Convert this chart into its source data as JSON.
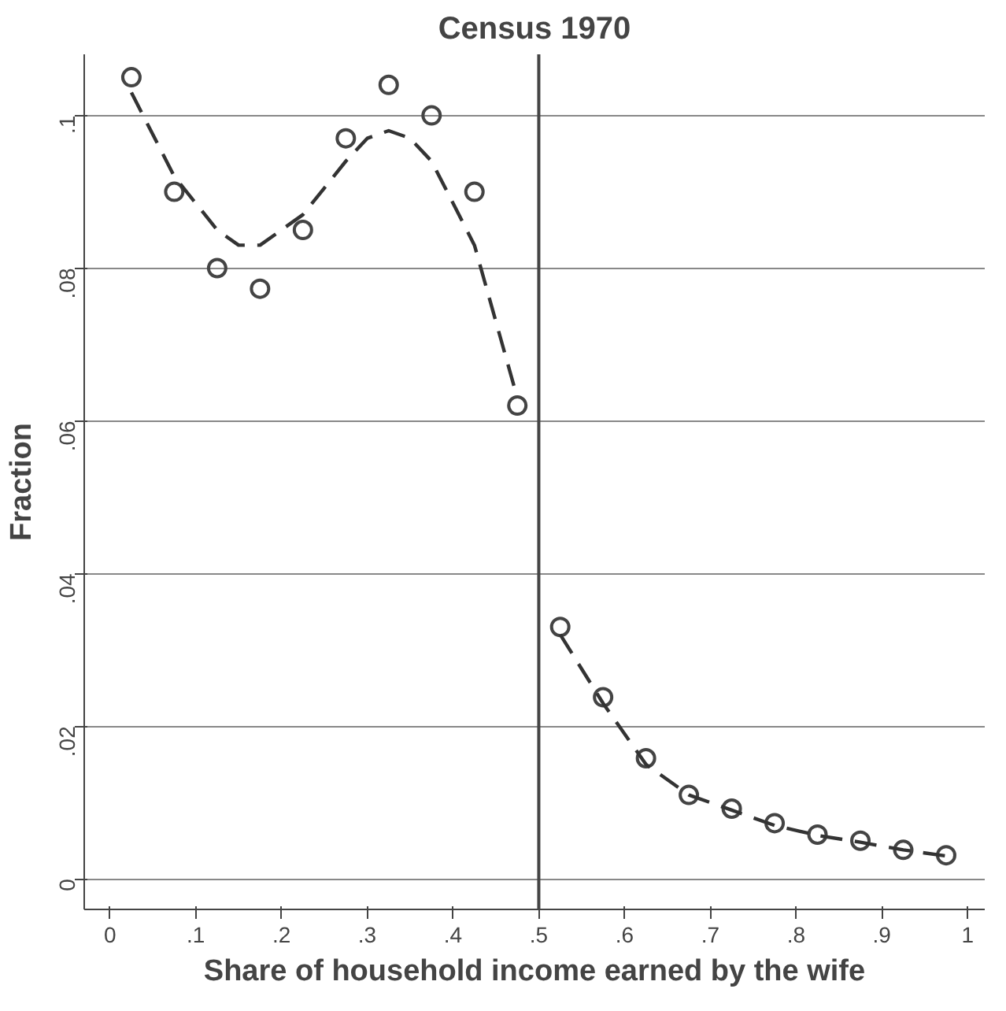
{
  "chart_data": {
    "type": "scatter",
    "title": "Census 1970",
    "xlabel": "Share of household income earned by the wife",
    "ylabel": "Fraction",
    "series": [
      {
        "color": "#444444",
        "marker": "circle",
        "x": [
          0.025,
          0.075,
          0.125,
          0.175,
          0.225,
          0.275,
          0.325,
          0.375,
          0.425,
          0.475,
          0.525,
          0.575,
          0.625,
          0.675,
          0.725,
          0.775,
          0.825,
          0.875,
          0.925,
          0.975
        ],
        "values": [
          0.105,
          0.09,
          0.08,
          0.0773,
          0.085,
          0.097,
          0.104,
          0.1,
          0.09,
          0.062,
          0.033,
          0.0238,
          0.0158,
          0.011,
          0.0092,
          0.0073,
          0.0058,
          0.005,
          0.0038,
          0.0031
        ]
      },
      {
        "type": "line",
        "color": "#333333",
        "line_style": "dashed",
        "x": [
          0.025,
          0.075,
          0.125,
          0.15,
          0.175,
          0.225,
          0.275,
          0.3,
          0.325,
          0.35,
          0.375,
          0.425,
          0.475,
          0.5,
          0.525,
          0.575,
          0.625,
          0.675,
          0.725,
          0.775,
          0.825,
          0.875,
          0.925,
          0.975
        ],
        "values": [
          0.103,
          0.092,
          0.085,
          0.083,
          0.083,
          0.087,
          0.094,
          0.097,
          0.098,
          0.097,
          0.094,
          0.083,
          0.063,
          null,
          0.032,
          0.023,
          0.015,
          0.011,
          0.009,
          0.007,
          0.0057,
          0.0048,
          0.0038,
          0.003
        ]
      }
    ],
    "xlim": [
      -0.03,
      1.02
    ],
    "ylim": [
      -0.004,
      0.108
    ],
    "xticks": [
      0,
      {
        "value": 0.1,
        "label": ".1"
      },
      {
        "value": 0.2,
        "label": ".2"
      },
      {
        "value": 0.3,
        "label": ".3"
      },
      {
        "value": 0.4,
        "label": ".4"
      },
      {
        "value": 0.5,
        "label": ".5"
      },
      {
        "value": 0.6,
        "label": ".6"
      },
      {
        "value": 0.7,
        "label": ".7"
      },
      {
        "value": 0.8,
        "label": ".8"
      },
      {
        "value": 0.9,
        "label": ".9"
      },
      1
    ],
    "yticks": [
      0,
      {
        "value": 0.02,
        "label": ".02"
      },
      {
        "value": 0.04,
        "label": ".04"
      },
      {
        "value": 0.06,
        "label": ".06"
      },
      {
        "value": 0.08,
        "label": ".08"
      },
      {
        "value": 0.1,
        "label": ".1"
      }
    ],
    "grid": "y",
    "ref_lines": [
      {
        "axis": "x",
        "value": 0.5,
        "color": "#444444"
      }
    ]
  }
}
